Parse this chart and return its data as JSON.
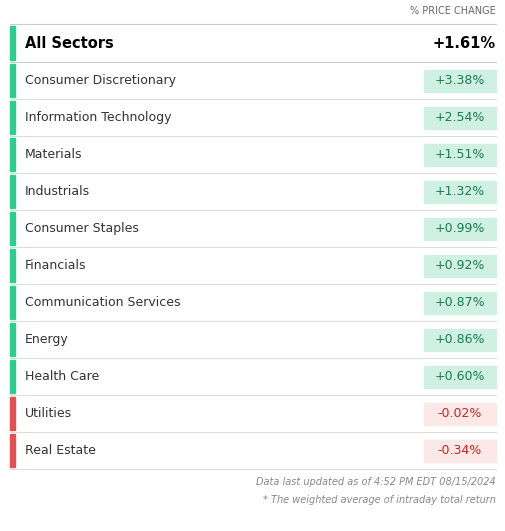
{
  "header_label": "% PRICE CHANGE",
  "all_sectors_label": "All Sectors",
  "all_sectors_value": "+1.61%",
  "rows": [
    {
      "sector": "Consumer Discretionary",
      "value": "+3.38%",
      "positive": true
    },
    {
      "sector": "Information Technology",
      "value": "+2.54%",
      "positive": true
    },
    {
      "sector": "Materials",
      "value": "+1.51%",
      "positive": true
    },
    {
      "sector": "Industrials",
      "value": "+1.32%",
      "positive": true
    },
    {
      "sector": "Consumer Staples",
      "value": "+0.99%",
      "positive": true
    },
    {
      "sector": "Financials",
      "value": "+0.92%",
      "positive": true
    },
    {
      "sector": "Communication Services",
      "value": "+0.87%",
      "positive": true
    },
    {
      "sector": "Energy",
      "value": "+0.86%",
      "positive": true
    },
    {
      "sector": "Health Care",
      "value": "+0.60%",
      "positive": true
    },
    {
      "sector": "Utilities",
      "value": "-0.02%",
      "positive": false
    },
    {
      "sector": "Real Estate",
      "value": "-0.34%",
      "positive": false
    }
  ],
  "footer_line1": "Data last updated as of 4:52 PM EDT 08/15/2024",
  "footer_line2": "* The weighted average of intraday total return",
  "positive_bar_color": "#2ecc8e",
  "negative_bar_color": "#e05252",
  "positive_bg_color": "#d0f0e4",
  "negative_bg_color": "#fde8e8",
  "bg_color": "#ffffff",
  "divider_color": "#cccccc",
  "header_color": "#666666",
  "footer_color": "#888888",
  "positive_val_color": "#1a7a50",
  "negative_val_color": "#cc2222",
  "sector_text_color": "#333333",
  "allsec_text_color": "#000000"
}
